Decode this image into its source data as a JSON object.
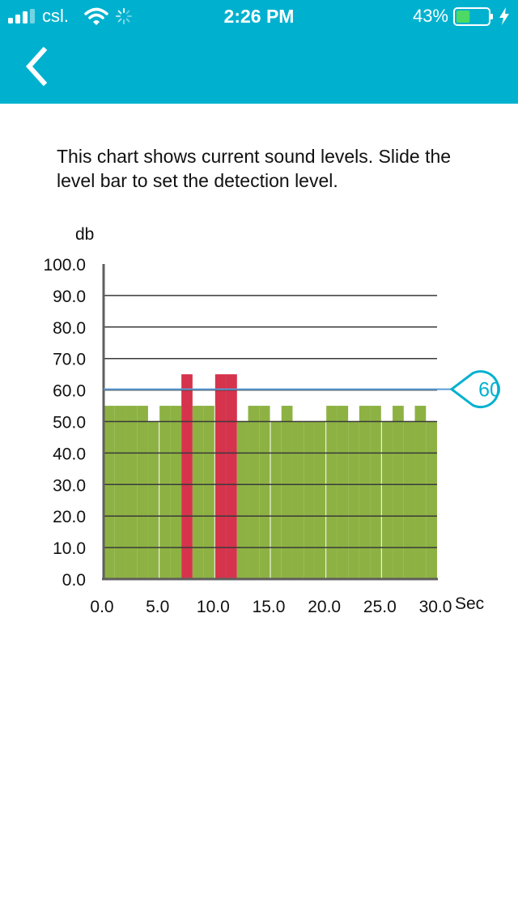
{
  "status_bar": {
    "carrier": "csl.",
    "time": "2:26 PM",
    "battery_percent": "43%",
    "battery_level": 0.43,
    "signal_bars": 3,
    "icons": [
      "signal-icon",
      "wifi-icon",
      "activity-spinner-icon",
      "battery-icon",
      "charging-bolt-icon"
    ]
  },
  "nav": {
    "back_icon": "chevron-left-icon",
    "color": "#00b1cf"
  },
  "description": "This chart shows current sound levels. Slide the level bar to set the detection level.",
  "level_slider": {
    "value": 60,
    "label": "60",
    "color": "#00b1cf"
  },
  "colors": {
    "below_threshold": "#8db243",
    "above_threshold": "#d6334c",
    "threshold_line": "#5a9bd5"
  },
  "chart_data": {
    "type": "bar",
    "ylabel": "db",
    "xlabel": "Sec",
    "ylim": [
      0,
      100
    ],
    "xlim": [
      0,
      30
    ],
    "yticks": [
      "0.0",
      "10.0",
      "20.0",
      "30.0",
      "40.0",
      "50.0",
      "60.0",
      "70.0",
      "80.0",
      "90.0",
      "100.0"
    ],
    "xticks": [
      "0.0",
      "5.0",
      "10.0",
      "15.0",
      "20.0",
      "25.0",
      "30.0"
    ],
    "threshold": 60,
    "grid": true,
    "bars": [
      {
        "x0": 0,
        "x1": 1,
        "value": 55
      },
      {
        "x0": 1,
        "x1": 2,
        "value": 55
      },
      {
        "x0": 2,
        "x1": 3,
        "value": 55
      },
      {
        "x0": 3,
        "x1": 4,
        "value": 55
      },
      {
        "x0": 4,
        "x1": 5,
        "value": 50
      },
      {
        "x0": 5,
        "x1": 6,
        "value": 55
      },
      {
        "x0": 6,
        "x1": 7,
        "value": 55
      },
      {
        "x0": 7,
        "x1": 8,
        "value": 65
      },
      {
        "x0": 8,
        "x1": 9,
        "value": 55
      },
      {
        "x0": 9,
        "x1": 10,
        "value": 55
      },
      {
        "x0": 10,
        "x1": 11,
        "value": 65
      },
      {
        "x0": 11,
        "x1": 12,
        "value": 65
      },
      {
        "x0": 12,
        "x1": 13,
        "value": 50
      },
      {
        "x0": 13,
        "x1": 14,
        "value": 55
      },
      {
        "x0": 14,
        "x1": 15,
        "value": 55
      },
      {
        "x0": 15,
        "x1": 16,
        "value": 50
      },
      {
        "x0": 16,
        "x1": 17,
        "value": 55
      },
      {
        "x0": 17,
        "x1": 18,
        "value": 50
      },
      {
        "x0": 18,
        "x1": 19,
        "value": 50
      },
      {
        "x0": 19,
        "x1": 20,
        "value": 50
      },
      {
        "x0": 20,
        "x1": 21,
        "value": 55
      },
      {
        "x0": 21,
        "x1": 22,
        "value": 55
      },
      {
        "x0": 22,
        "x1": 23,
        "value": 50
      },
      {
        "x0": 23,
        "x1": 24,
        "value": 55
      },
      {
        "x0": 24,
        "x1": 25,
        "value": 55
      },
      {
        "x0": 25,
        "x1": 26,
        "value": 50
      },
      {
        "x0": 26,
        "x1": 27,
        "value": 55
      },
      {
        "x0": 27,
        "x1": 28,
        "value": 50
      },
      {
        "x0": 28,
        "x1": 29,
        "value": 55
      },
      {
        "x0": 29,
        "x1": 30,
        "value": 50
      }
    ]
  }
}
